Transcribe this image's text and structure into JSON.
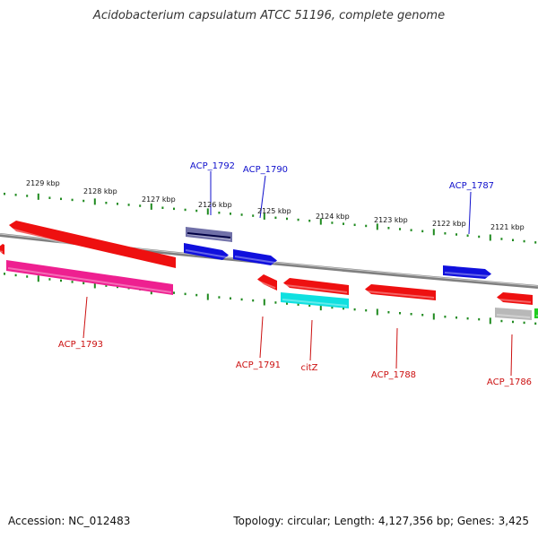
{
  "title": "Acidobacterium capsulatum ATCC 51196, complete genome",
  "footer": {
    "accession": "Accession: NC_012483",
    "summary": "Topology: circular; Length: 4,127,356 bp; Genes: 3,425"
  },
  "colors": {
    "forward_label": "#1010cc",
    "reverse_label": "#cc1010",
    "tick": "#1f8a1f",
    "backbone": "#808080"
  },
  "scale_labels": [
    "2129 kbp",
    "2128 kbp",
    "2127 kbp",
    "2126 kbp",
    "2125 kbp",
    "2124 kbp",
    "2123 kbp",
    "2122 kbp",
    "2121 kbp"
  ],
  "gene_labels": [
    {
      "text": "ACP_1792",
      "strand": "forward"
    },
    {
      "text": "ACP_1790",
      "strand": "forward"
    },
    {
      "text": "ACP_1787",
      "strand": "forward"
    },
    {
      "text": "ACP_1793",
      "strand": "reverse"
    },
    {
      "text": "ACP_1791",
      "strand": "reverse"
    },
    {
      "text": "citZ",
      "strand": "reverse"
    },
    {
      "text": "ACP_1788",
      "strand": "reverse"
    },
    {
      "text": "ACP_1786",
      "strand": "reverse"
    }
  ],
  "features": [
    {
      "name": "ACP_1792",
      "color": "#7070a8",
      "dir": "none"
    },
    {
      "name": "fwd-gene-a",
      "color": "#1010dd",
      "dir": "right"
    },
    {
      "name": "ACP_1790",
      "color": "#1010dd",
      "dir": "right"
    },
    {
      "name": "ACP_1787",
      "color": "#1010dd",
      "dir": "right"
    },
    {
      "name": "rev-gene-edge",
      "color": "#ee1010",
      "dir": "left"
    },
    {
      "name": "rev-gene-large",
      "color": "#ee1010",
      "dir": "left"
    },
    {
      "name": "ACP_1793",
      "color": "#ee2090",
      "dir": "none"
    },
    {
      "name": "ACP_1791",
      "color": "#ee1010",
      "dir": "left"
    },
    {
      "name": "rev-gene-b",
      "color": "#ee1010",
      "dir": "left"
    },
    {
      "name": "citZ",
      "color": "#10e0e0",
      "dir": "none"
    },
    {
      "name": "ACP_1788",
      "color": "#ee1010",
      "dir": "left"
    },
    {
      "name": "rev-gene-c",
      "color": "#ee1010",
      "dir": "left"
    },
    {
      "name": "ACP_1786",
      "color": "#b8b8b8",
      "dir": "none"
    },
    {
      "name": "edge-gene-green",
      "color": "#22cc22",
      "dir": "none"
    }
  ]
}
